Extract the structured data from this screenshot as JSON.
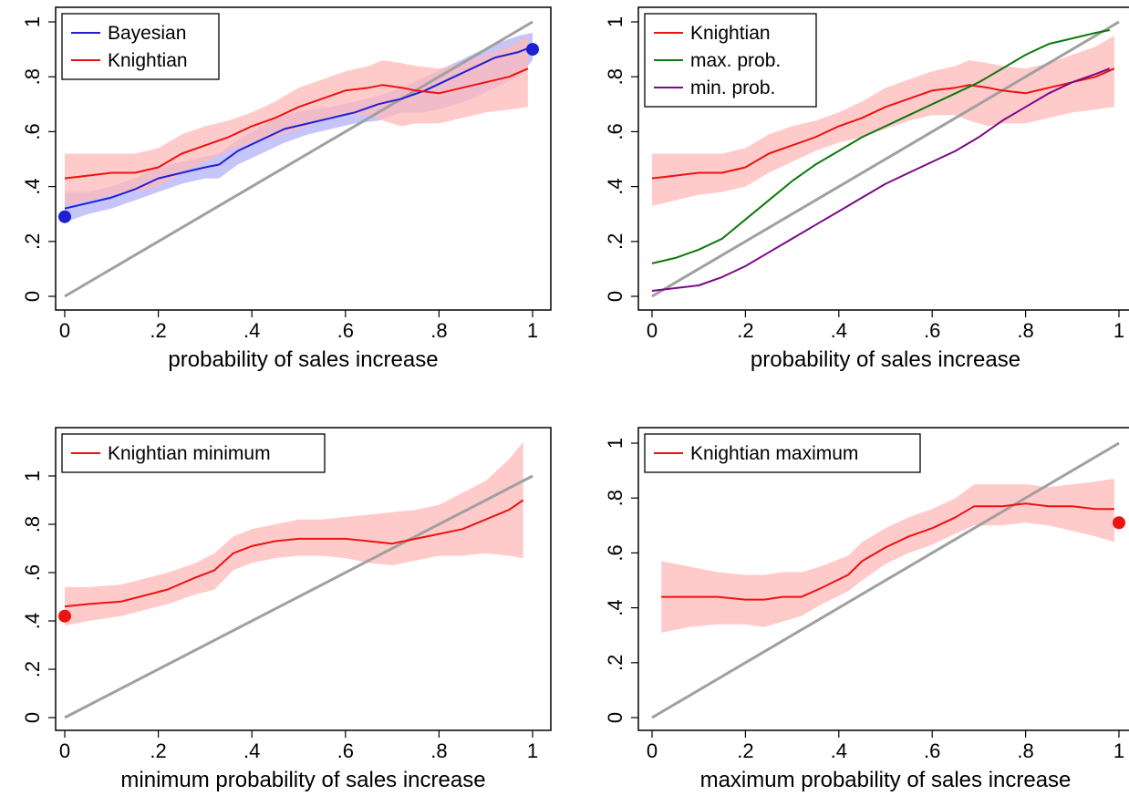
{
  "colors": {
    "bayesian": "#1f1fd6",
    "bayesian_band": "#7f7ff5",
    "knightian": "#ee1111",
    "knightian_band": "#ffb8b8",
    "max_prob": "#0c7a0c",
    "min_prob": "#7a0a86",
    "diagonal": "#a0a0a0"
  },
  "chart_data": [
    {
      "type": "line",
      "xlabel": "probability of sales increase",
      "xlim": [
        0,
        1
      ],
      "ylim": [
        0,
        1
      ],
      "xticks": [
        "0",
        ".2",
        ".4",
        ".6",
        ".8",
        "1"
      ],
      "yticks": [
        "0",
        ".2",
        ".4",
        ".6",
        ".8",
        "1"
      ],
      "legend_position": "top-left",
      "diagonal": true,
      "series": [
        {
          "name": "Bayesian",
          "color_key": "bayesian",
          "x": [
            0,
            0.05,
            0.1,
            0.15,
            0.2,
            0.25,
            0.3,
            0.33,
            0.37,
            0.42,
            0.47,
            0.52,
            0.57,
            0.62,
            0.67,
            0.72,
            0.77,
            0.82,
            0.87,
            0.92,
            0.97,
            1.0
          ],
          "y": [
            0.32,
            0.34,
            0.36,
            0.39,
            0.43,
            0.45,
            0.47,
            0.48,
            0.53,
            0.57,
            0.61,
            0.63,
            0.65,
            0.67,
            0.7,
            0.72,
            0.75,
            0.79,
            0.83,
            0.87,
            0.89,
            0.91
          ],
          "band_lower": [
            0.27,
            0.3,
            0.32,
            0.35,
            0.38,
            0.41,
            0.43,
            0.43,
            0.48,
            0.52,
            0.56,
            0.59,
            0.61,
            0.63,
            0.64,
            0.67,
            0.67,
            0.69,
            0.72,
            0.76,
            0.8,
            0.86
          ],
          "band_upper": [
            0.38,
            0.38,
            0.4,
            0.43,
            0.47,
            0.49,
            0.51,
            0.52,
            0.57,
            0.62,
            0.66,
            0.68,
            0.69,
            0.71,
            0.73,
            0.76,
            0.8,
            0.84,
            0.88,
            0.92,
            0.95,
            0.96
          ]
        },
        {
          "name": "Knightian",
          "color_key": "knightian",
          "x": [
            0.0,
            0.05,
            0.1,
            0.15,
            0.2,
            0.25,
            0.3,
            0.35,
            0.4,
            0.45,
            0.5,
            0.55,
            0.6,
            0.65,
            0.68,
            0.72,
            0.75,
            0.8,
            0.85,
            0.9,
            0.95,
            0.99
          ],
          "y": [
            0.43,
            0.44,
            0.45,
            0.45,
            0.47,
            0.52,
            0.55,
            0.58,
            0.62,
            0.65,
            0.69,
            0.72,
            0.75,
            0.76,
            0.77,
            0.76,
            0.75,
            0.74,
            0.76,
            0.78,
            0.8,
            0.83
          ],
          "band_lower": [
            0.33,
            0.35,
            0.37,
            0.38,
            0.4,
            0.45,
            0.49,
            0.53,
            0.56,
            0.58,
            0.61,
            0.64,
            0.66,
            0.66,
            0.64,
            0.62,
            0.63,
            0.63,
            0.65,
            0.67,
            0.68,
            0.69
          ],
          "band_upper": [
            0.52,
            0.52,
            0.52,
            0.52,
            0.54,
            0.59,
            0.62,
            0.64,
            0.67,
            0.71,
            0.76,
            0.79,
            0.82,
            0.84,
            0.86,
            0.85,
            0.84,
            0.83,
            0.85,
            0.88,
            0.91,
            0.95
          ]
        }
      ],
      "points": [
        {
          "x": 0,
          "y": 0.29,
          "color_key": "bayesian"
        },
        {
          "x": 1,
          "y": 0.9,
          "color_key": "bayesian"
        }
      ]
    },
    {
      "type": "line",
      "xlabel": "probability of sales increase",
      "xlim": [
        0,
        1
      ],
      "ylim": [
        0,
        1
      ],
      "xticks": [
        "0",
        ".2",
        ".4",
        ".6",
        ".8",
        "1"
      ],
      "yticks": [
        "0",
        ".2",
        ".4",
        ".6",
        ".8",
        "1"
      ],
      "legend_position": "top-left",
      "diagonal": true,
      "series": [
        {
          "name": "Knightian",
          "color_key": "knightian",
          "x": [
            0.0,
            0.05,
            0.1,
            0.15,
            0.2,
            0.25,
            0.3,
            0.35,
            0.4,
            0.45,
            0.5,
            0.55,
            0.6,
            0.65,
            0.68,
            0.72,
            0.75,
            0.8,
            0.85,
            0.9,
            0.95,
            0.99
          ],
          "y": [
            0.43,
            0.44,
            0.45,
            0.45,
            0.47,
            0.52,
            0.55,
            0.58,
            0.62,
            0.65,
            0.69,
            0.72,
            0.75,
            0.76,
            0.77,
            0.76,
            0.75,
            0.74,
            0.76,
            0.78,
            0.8,
            0.83
          ],
          "band_lower": [
            0.33,
            0.35,
            0.37,
            0.38,
            0.4,
            0.45,
            0.49,
            0.53,
            0.56,
            0.58,
            0.61,
            0.64,
            0.66,
            0.66,
            0.64,
            0.62,
            0.63,
            0.63,
            0.65,
            0.67,
            0.68,
            0.69
          ],
          "band_upper": [
            0.52,
            0.52,
            0.52,
            0.52,
            0.54,
            0.59,
            0.62,
            0.64,
            0.67,
            0.71,
            0.76,
            0.79,
            0.82,
            0.84,
            0.86,
            0.85,
            0.84,
            0.83,
            0.85,
            0.88,
            0.91,
            0.95
          ]
        },
        {
          "name": "max. prob.",
          "color_key": "max_prob",
          "x": [
            0.0,
            0.05,
            0.1,
            0.15,
            0.2,
            0.25,
            0.3,
            0.35,
            0.4,
            0.45,
            0.5,
            0.55,
            0.6,
            0.65,
            0.7,
            0.75,
            0.8,
            0.85,
            0.9,
            0.95,
            0.98
          ],
          "y": [
            0.12,
            0.14,
            0.17,
            0.21,
            0.28,
            0.35,
            0.42,
            0.48,
            0.53,
            0.58,
            0.62,
            0.66,
            0.7,
            0.74,
            0.78,
            0.83,
            0.88,
            0.92,
            0.94,
            0.96,
            0.97
          ]
        },
        {
          "name": "min. prob.",
          "color_key": "min_prob",
          "x": [
            0.0,
            0.05,
            0.1,
            0.15,
            0.2,
            0.25,
            0.3,
            0.35,
            0.4,
            0.45,
            0.5,
            0.55,
            0.6,
            0.65,
            0.7,
            0.75,
            0.8,
            0.85,
            0.9,
            0.95,
            0.98
          ],
          "y": [
            0.02,
            0.03,
            0.04,
            0.07,
            0.11,
            0.16,
            0.21,
            0.26,
            0.31,
            0.36,
            0.41,
            0.45,
            0.49,
            0.53,
            0.58,
            0.64,
            0.69,
            0.74,
            0.78,
            0.81,
            0.83
          ]
        }
      ],
      "points": []
    },
    {
      "type": "line",
      "xlabel": "minimum probability of sales increase",
      "xlim": [
        0,
        1
      ],
      "ylim": [
        0,
        1.1
      ],
      "xticks": [
        "0",
        ".2",
        ".4",
        ".6",
        ".8",
        "1"
      ],
      "yticks": [
        "0",
        ".2",
        ".4",
        ".6",
        ".8",
        "1"
      ],
      "legend_position": "top-left",
      "diagonal": true,
      "series": [
        {
          "name": "Knightian minimum",
          "color_key": "knightian",
          "x": [
            0.0,
            0.05,
            0.12,
            0.18,
            0.22,
            0.28,
            0.32,
            0.36,
            0.4,
            0.45,
            0.5,
            0.55,
            0.6,
            0.65,
            0.7,
            0.75,
            0.8,
            0.85,
            0.9,
            0.95,
            0.98
          ],
          "y": [
            0.46,
            0.47,
            0.48,
            0.51,
            0.53,
            0.58,
            0.61,
            0.68,
            0.71,
            0.73,
            0.74,
            0.74,
            0.74,
            0.73,
            0.72,
            0.74,
            0.76,
            0.78,
            0.82,
            0.86,
            0.9
          ],
          "band_lower": [
            0.38,
            0.4,
            0.42,
            0.45,
            0.47,
            0.51,
            0.53,
            0.61,
            0.64,
            0.66,
            0.67,
            0.67,
            0.66,
            0.64,
            0.63,
            0.65,
            0.67,
            0.67,
            0.68,
            0.67,
            0.66
          ],
          "band_upper": [
            0.54,
            0.54,
            0.55,
            0.58,
            0.6,
            0.64,
            0.68,
            0.75,
            0.78,
            0.8,
            0.82,
            0.82,
            0.83,
            0.84,
            0.85,
            0.86,
            0.88,
            0.93,
            0.98,
            1.07,
            1.14
          ]
        }
      ],
      "points": [
        {
          "x": 0,
          "y": 0.42,
          "color_key": "knightian"
        }
      ]
    },
    {
      "type": "line",
      "xlabel": "maximum probability of sales increase",
      "xlim": [
        0,
        1
      ],
      "ylim": [
        0,
        1
      ],
      "xticks": [
        "0",
        ".2",
        ".4",
        ".6",
        ".8",
        "1"
      ],
      "yticks": [
        "0",
        ".2",
        ".4",
        ".6",
        ".8",
        "1"
      ],
      "legend_position": "top-left",
      "diagonal": true,
      "series": [
        {
          "name": "Knightian maximum",
          "color_key": "knightian",
          "x": [
            0.02,
            0.08,
            0.14,
            0.2,
            0.24,
            0.28,
            0.32,
            0.36,
            0.42,
            0.45,
            0.5,
            0.55,
            0.6,
            0.65,
            0.69,
            0.75,
            0.8,
            0.85,
            0.9,
            0.95,
            0.99
          ],
          "y": [
            0.44,
            0.44,
            0.44,
            0.43,
            0.43,
            0.44,
            0.44,
            0.47,
            0.52,
            0.57,
            0.62,
            0.66,
            0.69,
            0.73,
            0.77,
            0.77,
            0.78,
            0.77,
            0.77,
            0.76,
            0.76
          ],
          "band_lower": [
            0.31,
            0.33,
            0.34,
            0.34,
            0.33,
            0.35,
            0.37,
            0.41,
            0.46,
            0.5,
            0.56,
            0.6,
            0.63,
            0.67,
            0.7,
            0.7,
            0.71,
            0.7,
            0.68,
            0.66,
            0.64
          ],
          "band_upper": [
            0.57,
            0.55,
            0.53,
            0.52,
            0.52,
            0.53,
            0.53,
            0.55,
            0.59,
            0.64,
            0.69,
            0.73,
            0.76,
            0.8,
            0.85,
            0.85,
            0.85,
            0.84,
            0.85,
            0.86,
            0.87
          ]
        }
      ],
      "points": [
        {
          "x": 1,
          "y": 0.71,
          "color_key": "knightian"
        }
      ]
    }
  ]
}
